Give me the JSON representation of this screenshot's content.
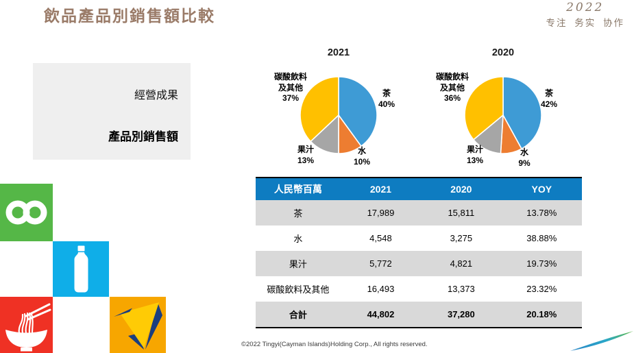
{
  "header": {
    "title": "飲品產品別銷售額比較",
    "title_color": "#9A7B68",
    "brand_year": "2022",
    "brand_tagline": "专注 务实 协作",
    "brand_color": "#8B7A6B"
  },
  "sidebar": {
    "section_label": "經營成果",
    "page_label": "產品別銷售額",
    "background": "#EFEFEF"
  },
  "chart_data": [
    {
      "type": "pie",
      "title": "2021",
      "start_angle": "12-oclock-clockwise",
      "slices": [
        {
          "name": "茶",
          "value": 40,
          "pct": "40%",
          "color": "#3E9BD5"
        },
        {
          "name": "水",
          "value": 10,
          "pct": "10%",
          "color": "#ED7D31"
        },
        {
          "name": "果汁",
          "value": 13,
          "pct": "13%",
          "color": "#A6A6A6"
        },
        {
          "name": "碳酸飲料及其他",
          "value": 37,
          "pct": "37%",
          "color": "#FFC000"
        }
      ]
    },
    {
      "type": "pie",
      "title": "2020",
      "start_angle": "12-oclock-clockwise",
      "slices": [
        {
          "name": "茶",
          "value": 42,
          "pct": "42%",
          "color": "#3E9BD5"
        },
        {
          "name": "水",
          "value": 9,
          "pct": "9%",
          "color": "#ED7D31"
        },
        {
          "name": "果汁",
          "value": 13,
          "pct": "13%",
          "color": "#A6A6A6"
        },
        {
          "name": "碳酸飲料及其他",
          "value": 36,
          "pct": "36%",
          "color": "#FFC000"
        }
      ]
    },
    {
      "type": "table",
      "headers": [
        "人民幣百萬",
        "2021",
        "2020",
        "YOY"
      ],
      "rows": [
        [
          "茶",
          "17,989",
          "15,811",
          "13.78%"
        ],
        [
          "水",
          "4,548",
          "3,275",
          "38.88%"
        ],
        [
          "果汁",
          "5,772",
          "4,821",
          "19.73%"
        ],
        [
          "碳酸飲料及其他",
          "16,493",
          "13,373",
          "23.32%"
        ]
      ],
      "total_row": [
        "合計",
        "44,802",
        "37,280",
        "20.18%"
      ],
      "header_bg": "#0E7CC1",
      "stripe_bg": "#D9D9D9"
    }
  ],
  "footer": {
    "copyright": "©2022 Tingyi(Cayman Islands)Holding Corp., All rights reserved."
  },
  "decor": {
    "tiles": [
      {
        "name": "infinity",
        "color": "#55B747"
      },
      {
        "name": "bottle",
        "color": "#0FAEE8"
      },
      {
        "name": "noodle-bowl",
        "color": "#EF3124"
      },
      {
        "name": "paper-plane",
        "color": "#F7A600"
      }
    ],
    "plane_triangle_color": "#FFCB05",
    "plane_accent_color": "#1B3E7E",
    "swoosh": [
      "#2B86C6",
      "#2AA7C9",
      "#63BA46"
    ]
  }
}
